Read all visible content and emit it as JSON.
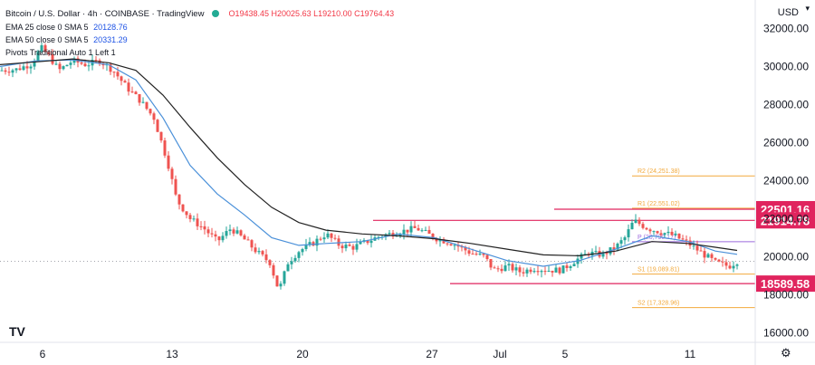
{
  "legend": {
    "symbol": "Bitcoin / U.S. Dollar · 4h · COINBASE · TradingView",
    "ohlc": "O19438.45 H20025.63 L19210.00 C19764.43",
    "ema25_label": "EMA 25 close 0 SMA 5",
    "ema25_value": "20128.76",
    "ema50_label": "EMA 50 close 0 SMA 5",
    "ema50_value": "20331.29",
    "pivots_label": "Pivots Traditional Auto 1 Left 1"
  },
  "currency": "USD",
  "logo_text": "TV",
  "colors": {
    "up": "#26a69a",
    "down": "#ef5350",
    "ema25": "#4a90d9",
    "ema50": "#222222",
    "level": "#e0245e",
    "pivot": "#f2a93b",
    "pivot_p": "#9c6ade"
  },
  "chart_data": {
    "type": "candlestick",
    "title": "Bitcoin / U.S. Dollar 4h COINBASE",
    "ylim": [
      15500,
      33500
    ],
    "xlim": [
      0,
      834
    ],
    "y_ticks": [
      "16000.00",
      "18000.00",
      "20000.00",
      "22000.00",
      "24000.00",
      "26000.00",
      "28000.00",
      "30000.00",
      "32000.00"
    ],
    "x_ticks": [
      {
        "label": "6",
        "index": 47
      },
      {
        "label": "13",
        "index": 190
      },
      {
        "label": "20",
        "index": 334
      },
      {
        "label": "27",
        "index": 477
      },
      {
        "label": "Jul",
        "index": 552
      },
      {
        "label": "5",
        "index": 624
      },
      {
        "label": "11",
        "index": 762
      }
    ],
    "price_path": [
      [
        0,
        29800
      ],
      [
        18,
        29850
      ],
      [
        35,
        30150
      ],
      [
        45,
        31000
      ],
      [
        55,
        30500
      ],
      [
        65,
        29800
      ],
      [
        80,
        30300
      ],
      [
        95,
        30100
      ],
      [
        110,
        30300
      ],
      [
        125,
        29800
      ],
      [
        140,
        28900
      ],
      [
        155,
        28200
      ],
      [
        170,
        27300
      ],
      [
        185,
        25000
      ],
      [
        195,
        23000
      ],
      [
        210,
        22000
      ],
      [
        225,
        21500
      ],
      [
        240,
        20800
      ],
      [
        255,
        21500
      ],
      [
        270,
        20900
      ],
      [
        285,
        20200
      ],
      [
        298,
        19700
      ],
      [
        308,
        18200
      ],
      [
        318,
        19700
      ],
      [
        330,
        20300
      ],
      [
        345,
        20700
      ],
      [
        360,
        21200
      ],
      [
        375,
        20600
      ],
      [
        390,
        20500
      ],
      [
        405,
        20800
      ],
      [
        420,
        21100
      ],
      [
        440,
        21300
      ],
      [
        460,
        21500
      ],
      [
        480,
        21000
      ],
      [
        500,
        20700
      ],
      [
        520,
        20200
      ],
      [
        535,
        20000
      ],
      [
        545,
        19300
      ],
      [
        560,
        19500
      ],
      [
        575,
        19200
      ],
      [
        590,
        19400
      ],
      [
        605,
        19300
      ],
      [
        620,
        19300
      ],
      [
        635,
        19800
      ],
      [
        650,
        20200
      ],
      [
        665,
        20100
      ],
      [
        680,
        20500
      ],
      [
        690,
        21000
      ],
      [
        700,
        21900
      ],
      [
        715,
        21500
      ],
      [
        730,
        21300
      ],
      [
        745,
        21100
      ],
      [
        760,
        20700
      ],
      [
        775,
        20200
      ],
      [
        790,
        19700
      ],
      [
        805,
        19500
      ],
      [
        814,
        19764
      ]
    ],
    "ema25": [
      [
        0,
        30000
      ],
      [
        40,
        30300
      ],
      [
        80,
        30350
      ],
      [
        120,
        30100
      ],
      [
        150,
        29300
      ],
      [
        180,
        27300
      ],
      [
        210,
        24800
      ],
      [
        240,
        23300
      ],
      [
        270,
        22200
      ],
      [
        300,
        21000
      ],
      [
        330,
        20600
      ],
      [
        360,
        20700
      ],
      [
        400,
        20800
      ],
      [
        440,
        21200
      ],
      [
        480,
        21000
      ],
      [
        520,
        20400
      ],
      [
        560,
        19800
      ],
      [
        600,
        19500
      ],
      [
        640,
        19800
      ],
      [
        680,
        20400
      ],
      [
        720,
        21100
      ],
      [
        760,
        20800
      ],
      [
        790,
        20300
      ],
      [
        814,
        20129
      ]
    ],
    "ema50": [
      [
        0,
        30100
      ],
      [
        40,
        30250
      ],
      [
        80,
        30400
      ],
      [
        120,
        30200
      ],
      [
        150,
        29800
      ],
      [
        180,
        28500
      ],
      [
        210,
        26800
      ],
      [
        240,
        25200
      ],
      [
        270,
        23800
      ],
      [
        300,
        22600
      ],
      [
        330,
        21800
      ],
      [
        360,
        21400
      ],
      [
        400,
        21200
      ],
      [
        440,
        21100
      ],
      [
        480,
        20950
      ],
      [
        520,
        20700
      ],
      [
        560,
        20400
      ],
      [
        600,
        20100
      ],
      [
        640,
        20050
      ],
      [
        680,
        20300
      ],
      [
        720,
        20800
      ],
      [
        760,
        20700
      ],
      [
        790,
        20500
      ],
      [
        814,
        20331
      ]
    ],
    "levels": [
      {
        "label": "22501.16",
        "value": 22501.16,
        "x_start": 612
      },
      {
        "label": "21914.78",
        "value": 21914.78,
        "x_start": 412
      },
      {
        "label": "18589.58",
        "value": 18589.58,
        "x_start": 497
      }
    ],
    "current_price": 19764.43,
    "pivots": [
      {
        "label": "R2 (24,251.38)",
        "value": 24251.38,
        "color": "pivot"
      },
      {
        "label": "R1 (22,551.02)",
        "value": 22551.02,
        "color": "pivot"
      },
      {
        "label": "P (20,790.17)",
        "value": 20790.17,
        "color": "pivot_p"
      },
      {
        "label": "S1 (19,089.81)",
        "value": 19089.81,
        "color": "pivot"
      },
      {
        "label": "S2 (17,328.96)",
        "value": 17328.96,
        "color": "pivot"
      }
    ],
    "pivot_x_range": [
      698,
      834
    ]
  }
}
